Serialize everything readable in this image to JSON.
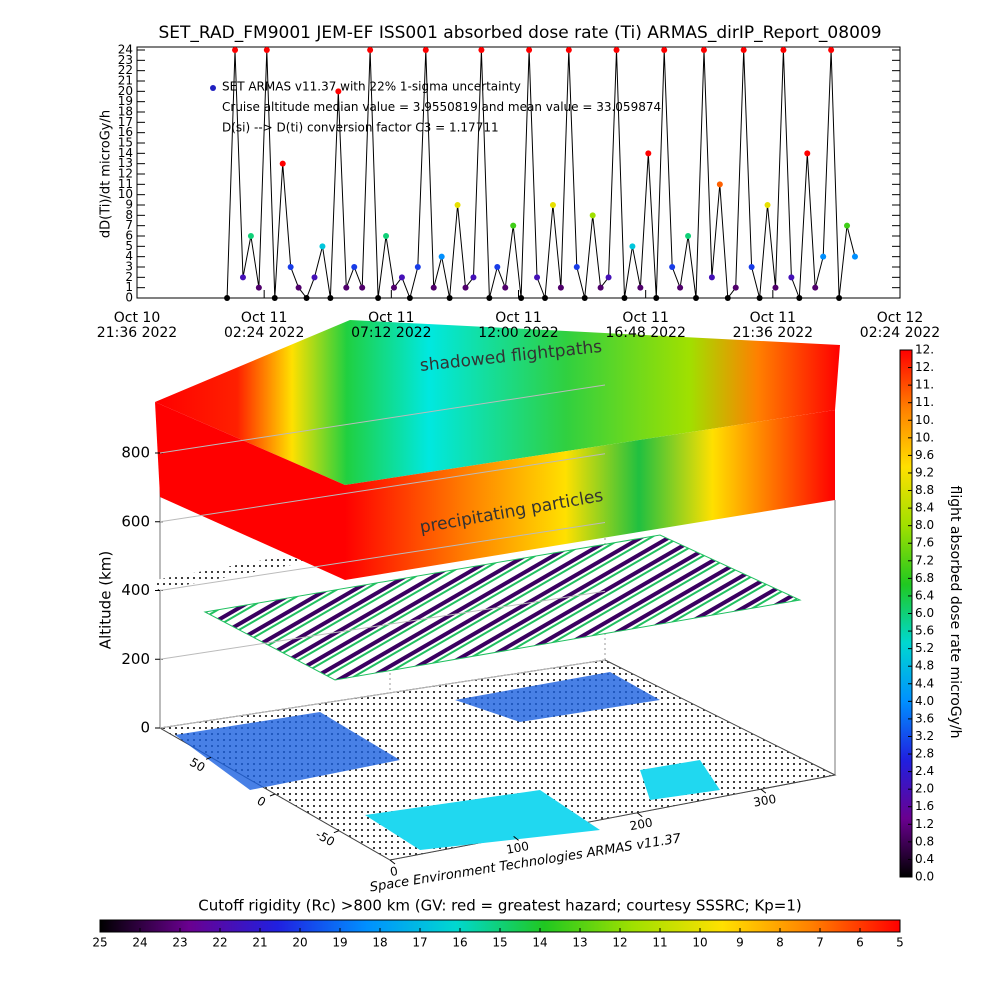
{
  "chart_data": [
    {
      "type": "line",
      "title": "SET_RAD_FM9001  JEM-EF ISS001 absorbed dose rate (Ti) ARMAS_dirIP_Report_08009",
      "y_label": "dD(Ti)/dt microGy/h",
      "annotations": [
        "SET ARMAS v11.37 with 22% 1-sigma uncertainty",
        "Cruise altitude median value = 3.9550819 and mean value = 33.059874",
        "D(si) --> D(ti) conversion factor C3 = 1.17711"
      ],
      "color": "#000000",
      "xlim": [
        0,
        28.8
      ],
      "xticks": [
        {
          "value": 0,
          "label": "Oct 10\n21:36 2022"
        },
        {
          "value": 4.8,
          "label": "Oct 11\n02:24 2022"
        },
        {
          "value": 9.6,
          "label": "Oct 11\n07:12 2022"
        },
        {
          "value": 14.4,
          "label": "Oct 11\n12:00 2022"
        },
        {
          "value": 19.2,
          "label": "Oct 11\n16:48 2022"
        },
        {
          "value": 24,
          "label": "Oct 11\n21:36 2022"
        },
        {
          "value": 28.8,
          "label": "Oct 12\n02:24 2022"
        }
      ],
      "ylim": [
        0,
        24
      ],
      "yticks": [
        0,
        1,
        2,
        3,
        4,
        5,
        6,
        7,
        8,
        9,
        10,
        11,
        12,
        13,
        14,
        15,
        16,
        17,
        18,
        19,
        20,
        21,
        22,
        23,
        24
      ],
      "x": [
        3.4,
        3.7,
        4.0,
        4.3,
        4.6,
        4.9,
        5.2,
        5.5,
        5.8,
        6.1,
        6.4,
        6.7,
        7.0,
        7.3,
        7.6,
        7.9,
        8.2,
        8.5,
        8.8,
        9.1,
        9.4,
        9.7,
        10.0,
        10.3,
        10.6,
        10.9,
        11.2,
        11.5,
        11.8,
        12.1,
        12.4,
        12.7,
        13.0,
        13.3,
        13.6,
        13.9,
        14.2,
        14.5,
        14.8,
        15.1,
        15.4,
        15.7,
        16.0,
        16.3,
        16.6,
        16.9,
        17.2,
        17.5,
        17.8,
        18.1,
        18.4,
        18.7,
        19.0,
        19.3,
        19.6,
        19.9,
        20.2,
        20.5,
        20.8,
        21.1,
        21.4,
        21.7,
        22.0,
        22.3,
        22.6,
        22.9,
        23.2,
        23.5,
        23.8,
        24.1,
        24.4,
        24.7,
        25.0,
        25.3,
        25.6,
        25.9,
        26.2,
        26.5,
        26.8,
        27.1
      ],
      "values": [
        0,
        24,
        2,
        6,
        1,
        24,
        0,
        13,
        3,
        1,
        0,
        2,
        5,
        0,
        20,
        1,
        3,
        1,
        24,
        0,
        6,
        1,
        2,
        0,
        3,
        24,
        1,
        4,
        0,
        9,
        1,
        2,
        24,
        0,
        3,
        1,
        7,
        0,
        24,
        2,
        0,
        9,
        1,
        24,
        3,
        0,
        8,
        1,
        2,
        24,
        0,
        5,
        1,
        14,
        0,
        24,
        3,
        1,
        6,
        0,
        24,
        2,
        11,
        0,
        1,
        24,
        3,
        0,
        9,
        1,
        24,
        2,
        0,
        14,
        1,
        4,
        24,
        0,
        7,
        4
      ]
    },
    {
      "type": "surface3d",
      "y_label": "Altitude (km)",
      "annotations": [
        "shadowed flightpaths",
        "precipitating particles",
        "Space Environment Technologies ARMAS v11.37"
      ],
      "zlim": [
        0,
        800
      ],
      "zticks": [
        0,
        200,
        400,
        600,
        800
      ],
      "xlim": [
        0,
        360
      ],
      "xticks": [
        0,
        100,
        200,
        300
      ],
      "ylim": [
        -90,
        90
      ],
      "yticks": [
        -50,
        0,
        50
      ]
    },
    {
      "type": "colorbar",
      "orientation": "vertical",
      "title": "flight absorbed dose rate microGy/h",
      "colors": [
        "#000000",
        "#6a0090",
        "#2020e0",
        "#0090ff",
        "#00d8d0",
        "#20c820",
        "#a0e000",
        "#ffe000",
        "#ff8000",
        "#ff0000"
      ],
      "ylim": [
        0,
        12
      ],
      "yticks": [
        {
          "value": 0,
          "label": "0.0"
        },
        {
          "value": 0.4,
          "label": "0.4"
        },
        {
          "value": 0.8,
          "label": "0.8"
        },
        {
          "value": 1.2,
          "label": "1.2"
        },
        {
          "value": 1.6,
          "label": "1.6"
        },
        {
          "value": 2,
          "label": "2.0"
        },
        {
          "value": 2.4,
          "label": "2.4"
        },
        {
          "value": 2.8,
          "label": "2.8"
        },
        {
          "value": 3.2,
          "label": "3.2"
        },
        {
          "value": 3.6,
          "label": "3.6"
        },
        {
          "value": 4,
          "label": "4.0"
        },
        {
          "value": 4.4,
          "label": "4.4"
        },
        {
          "value": 4.8,
          "label": "4.8"
        },
        {
          "value": 5.2,
          "label": "5.2"
        },
        {
          "value": 5.6,
          "label": "5.6"
        },
        {
          "value": 6,
          "label": "6.0"
        },
        {
          "value": 6.4,
          "label": "6.4"
        },
        {
          "value": 6.8,
          "label": "6.8"
        },
        {
          "value": 7.2,
          "label": "7.2"
        },
        {
          "value": 7.6,
          "label": "7.6"
        },
        {
          "value": 8,
          "label": "8.0"
        },
        {
          "value": 8.4,
          "label": "8.4"
        },
        {
          "value": 8.8,
          "label": "8.8"
        },
        {
          "value": 9.2,
          "label": "9.2"
        },
        {
          "value": 9.6,
          "label": "9.6"
        },
        {
          "value": 10,
          "label": "10."
        },
        {
          "value": 10.4,
          "label": "10."
        },
        {
          "value": 10.8,
          "label": "11."
        },
        {
          "value": 11.2,
          "label": "11."
        },
        {
          "value": 11.6,
          "label": "12."
        },
        {
          "value": 12,
          "label": "12."
        }
      ]
    },
    {
      "type": "colorbar",
      "orientation": "horizontal",
      "title": "Cutoff rigidity (Rc) >800 km (GV: red = greatest hazard; courtesy SSSRC; Kp=1)",
      "colors": [
        "#000000",
        "#6a0090",
        "#2020e0",
        "#0090ff",
        "#00d8d0",
        "#20c820",
        "#a0e000",
        "#ffe000",
        "#ff8000",
        "#ff0000"
      ],
      "xlim": [
        25,
        5
      ],
      "xticks": [
        25,
        24,
        23,
        22,
        21,
        20,
        19,
        18,
        17,
        16,
        15,
        14,
        13,
        12,
        11,
        10,
        9,
        8,
        7,
        6,
        5
      ]
    }
  ]
}
